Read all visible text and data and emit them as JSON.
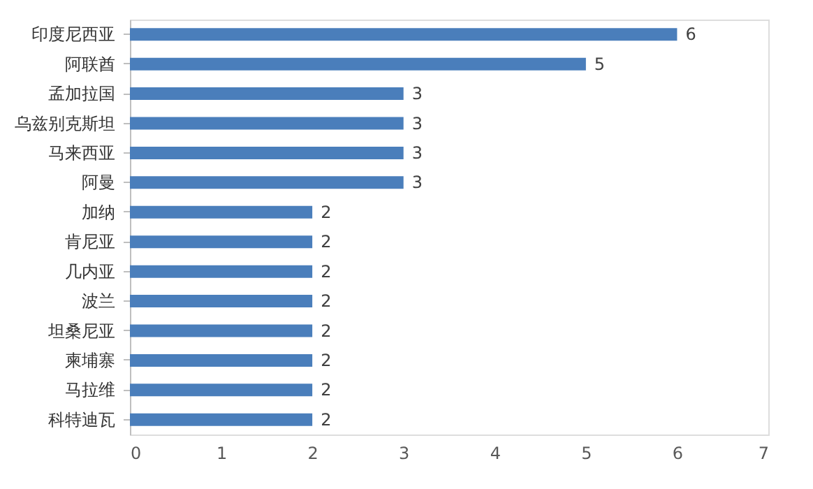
{
  "chart_data": {
    "type": "bar",
    "orientation": "horizontal",
    "categories": [
      "印度尼西亚",
      "阿联酋",
      "孟加拉国",
      "乌兹别克斯坦",
      "马来西亚",
      "阿曼",
      "加纳",
      "肯尼亚",
      "几内亚",
      "波兰",
      "坦桑尼亚",
      "柬埔寨",
      "马拉维",
      "科特迪瓦"
    ],
    "values": [
      6,
      5,
      3,
      3,
      3,
      3,
      2,
      2,
      2,
      2,
      2,
      2,
      2,
      2
    ],
    "color": "#4a7ebb",
    "xlim": [
      0,
      7
    ],
    "xticks": [
      0,
      1,
      2,
      3,
      4,
      5,
      6,
      7
    ],
    "data_labels": true,
    "grid": false
  }
}
